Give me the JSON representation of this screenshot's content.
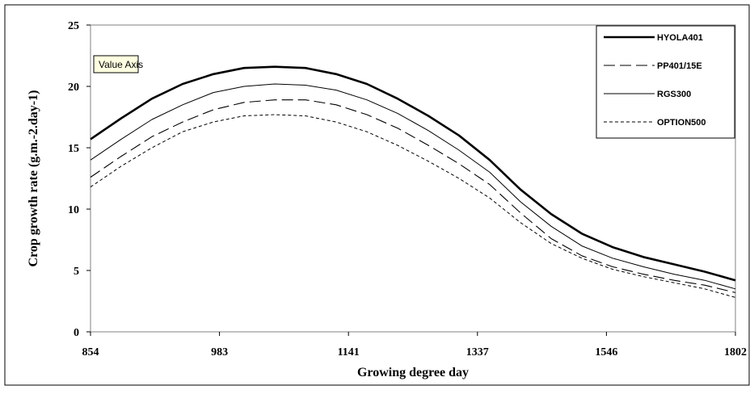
{
  "tooltip": {
    "text": "Value Axis"
  },
  "chart_data": {
    "type": "line",
    "xlabel": "Growing degree day",
    "ylabel": "Crop growth rate (g.m.-2.day-1)",
    "x_tick_labels": [
      "854",
      "983",
      "1141",
      "1337",
      "1546",
      "1802"
    ],
    "ylim": [
      0,
      25
    ],
    "y_ticks": [
      0,
      5,
      10,
      15,
      20,
      25
    ],
    "grid": false,
    "legend_position": "top-right",
    "series": [
      {
        "name": "HYOLA401",
        "style": "solid-thick",
        "values": [
          15.7,
          17.4,
          19.0,
          20.2,
          21.0,
          21.5,
          21.6,
          21.5,
          21.0,
          20.2,
          19.0,
          17.6,
          16.0,
          14.0,
          11.6,
          9.6,
          8.0,
          6.9,
          6.1,
          5.5,
          4.9,
          4.2
        ]
      },
      {
        "name": "PP401/15E",
        "style": "long-dash",
        "values": [
          12.6,
          14.3,
          15.9,
          17.1,
          18.1,
          18.7,
          18.9,
          18.9,
          18.5,
          17.7,
          16.6,
          15.2,
          13.7,
          12.0,
          9.7,
          7.6,
          6.2,
          5.3,
          4.7,
          4.2,
          3.8,
          3.2
        ]
      },
      {
        "name": "RGS300",
        "style": "thin-solid",
        "values": [
          14.0,
          15.7,
          17.3,
          18.5,
          19.5,
          20.0,
          20.2,
          20.1,
          19.7,
          18.9,
          17.8,
          16.4,
          14.8,
          13.0,
          10.6,
          8.6,
          7.0,
          6.0,
          5.3,
          4.7,
          4.2,
          3.5
        ]
      },
      {
        "name": "OPTION500",
        "style": "short-dash",
        "values": [
          11.8,
          13.5,
          15.0,
          16.3,
          17.1,
          17.6,
          17.7,
          17.6,
          17.1,
          16.3,
          15.2,
          13.9,
          12.5,
          10.9,
          8.9,
          7.2,
          6.0,
          5.1,
          4.5,
          4.0,
          3.5,
          2.8
        ]
      }
    ]
  }
}
